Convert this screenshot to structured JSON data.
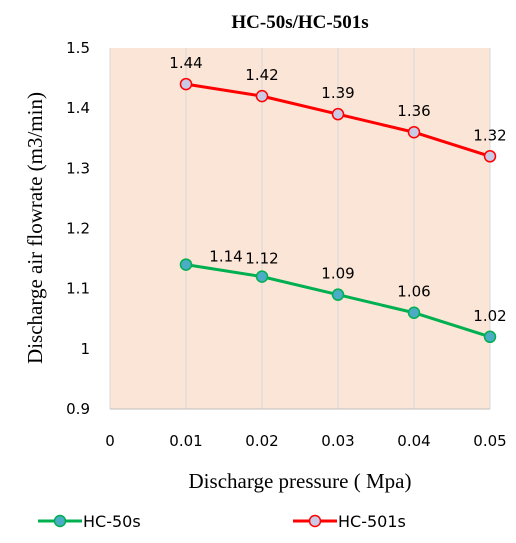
{
  "chart_data": {
    "type": "line",
    "title": "HC-50s/HC-501s",
    "xlabel": "Discharge pressure ( Mpa)",
    "ylabel": "Discharge air flowrate (m3/min)",
    "x_ticks": [
      "0",
      "0.01",
      "0.02",
      "0.03",
      "0.04",
      "0.05"
    ],
    "xlim": [
      0,
      0.05
    ],
    "y_ticks": [
      "0.9",
      "1",
      "1.1",
      "1.2",
      "1.3",
      "1.4",
      "1.5"
    ],
    "ylim": [
      0.9,
      1.5
    ],
    "x": [
      0.01,
      0.02,
      0.03,
      0.04,
      0.05
    ],
    "series": [
      {
        "name": "HC-50s",
        "values": [
          1.14,
          1.12,
          1.09,
          1.06,
          1.02
        ],
        "labels": [
          "1.14",
          "1.12",
          "1.09",
          "1.06",
          "1.02"
        ],
        "line_color": "#00b050",
        "marker_color": "#4bacc6"
      },
      {
        "name": "HC-501s",
        "values": [
          1.44,
          1.42,
          1.39,
          1.36,
          1.32
        ],
        "labels": [
          "1.44",
          "1.42",
          "1.39",
          "1.36",
          "1.32"
        ],
        "line_color": "#ff0000",
        "marker_color": "#c9cbe6"
      }
    ],
    "plot_background": "#fbe5d6",
    "grid": "vertical",
    "legend_position": "bottom"
  }
}
